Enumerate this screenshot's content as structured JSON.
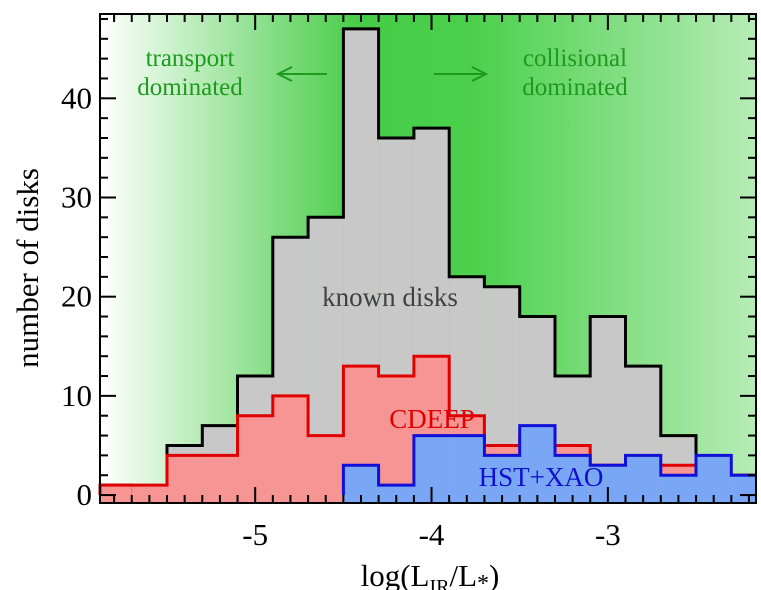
{
  "chart_data": {
    "type": "histogram",
    "xlabel": "log(L",
    "xlabel_sub1": "IR",
    "xlabel_mid": "/L",
    "xlabel_sub2": "*",
    "xlabel_end": ")",
    "ylabel": "number of disks",
    "xlim": [
      -5.88,
      -2.16
    ],
    "ylim": [
      -0.8,
      48.5
    ],
    "x_ticks": [
      -5,
      -4,
      -3
    ],
    "x_tick_labels": [
      "-5",
      "-4",
      "-3"
    ],
    "y_ticks": [
      0,
      10,
      20,
      30,
      40
    ],
    "y_tick_labels": [
      "0",
      "10",
      "20",
      "30",
      "40"
    ],
    "bin_edges": [
      -5.9,
      -5.7,
      -5.5,
      -5.3,
      -5.1,
      -4.9,
      -4.7,
      -4.5,
      -4.3,
      -4.1,
      -3.9,
      -3.7,
      -3.5,
      -3.3,
      -3.1,
      -2.9,
      -2.7,
      -2.5,
      -2.3,
      -2.1
    ],
    "series": [
      {
        "name": "known disks",
        "fill": "#c8c8c8",
        "stroke": "#000000",
        "counts": [
          1,
          0,
          5,
          7,
          12,
          26,
          28,
          47,
          36,
          37,
          22,
          21,
          18,
          12,
          18,
          13,
          6,
          2,
          2
        ]
      },
      {
        "name": "CDEEP",
        "fill": "#f79494",
        "stroke": "#e00000",
        "counts": [
          1,
          1,
          4,
          4,
          8,
          10,
          6,
          13,
          12,
          14,
          8,
          5,
          6,
          5,
          3,
          3,
          3,
          2,
          2
        ]
      },
      {
        "name": "HST+XAO",
        "fill": "#79a7f5",
        "stroke": "#1010d8",
        "start_edge": -4.5,
        "counts": [
          0,
          0,
          0,
          0,
          0,
          0,
          0,
          3,
          1,
          6,
          6,
          4,
          7,
          4,
          3,
          4,
          2,
          4,
          2
        ]
      }
    ],
    "annotations": {
      "left_text": [
        "transport",
        "dominated"
      ],
      "right_text": [
        "collisional",
        "dominated"
      ],
      "known_label": "known disks",
      "cdeep_label": "CDEEP",
      "hst_label": "HST+XAO"
    },
    "colors": {
      "annotation_green": "#1e9a1e",
      "background_green": "#44cc44",
      "known_label": "#404040",
      "cdeep_label": "#e00000",
      "hst_label": "#1010d0"
    },
    "grid": false,
    "legend": "none"
  }
}
